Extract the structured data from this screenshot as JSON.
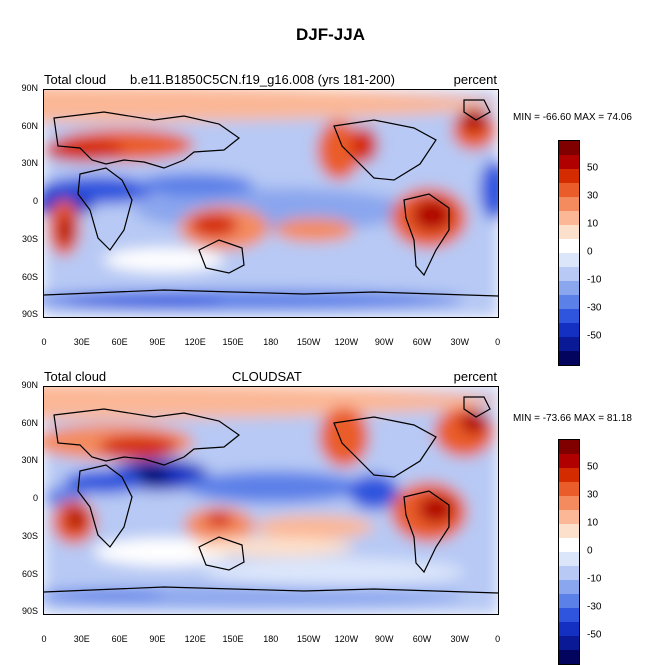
{
  "title": "DJF-JJA",
  "colors": [
    "#800000",
    "#b00000",
    "#d42b00",
    "#ea5d2a",
    "#f48b5e",
    "#fbb796",
    "#fde0cb",
    "#ffffff",
    "#dce6fb",
    "#b7c9f4",
    "#8aa6ee",
    "#5b80e8",
    "#2f55de",
    "#1430c2",
    "#0a1a96",
    "#03045e"
  ],
  "contour_labels": [
    "50",
    "30",
    "10",
    "0",
    "-10",
    "-30",
    "-50"
  ],
  "axes": {
    "y_ticks": [
      "90N",
      "60N",
      "30N",
      "0",
      "30S",
      "60S",
      "90S"
    ],
    "x_ticks": [
      "0",
      "30E",
      "60E",
      "90E",
      "120E",
      "150E",
      "180",
      "150W",
      "120W",
      "90W",
      "60W",
      "30W",
      "0"
    ]
  },
  "panels": [
    {
      "left": "Total cloud",
      "center": "b.e11.B1850C5CN.f19_g16.008 (yrs 181-200)",
      "right": "percent",
      "minmax": "MIN = -66.60 MAX =  74.06"
    },
    {
      "left": "Total cloud",
      "center": "CLOUDSAT",
      "right": "percent",
      "minmax": "MIN = -73.66 MAX =  81.18"
    }
  ]
}
